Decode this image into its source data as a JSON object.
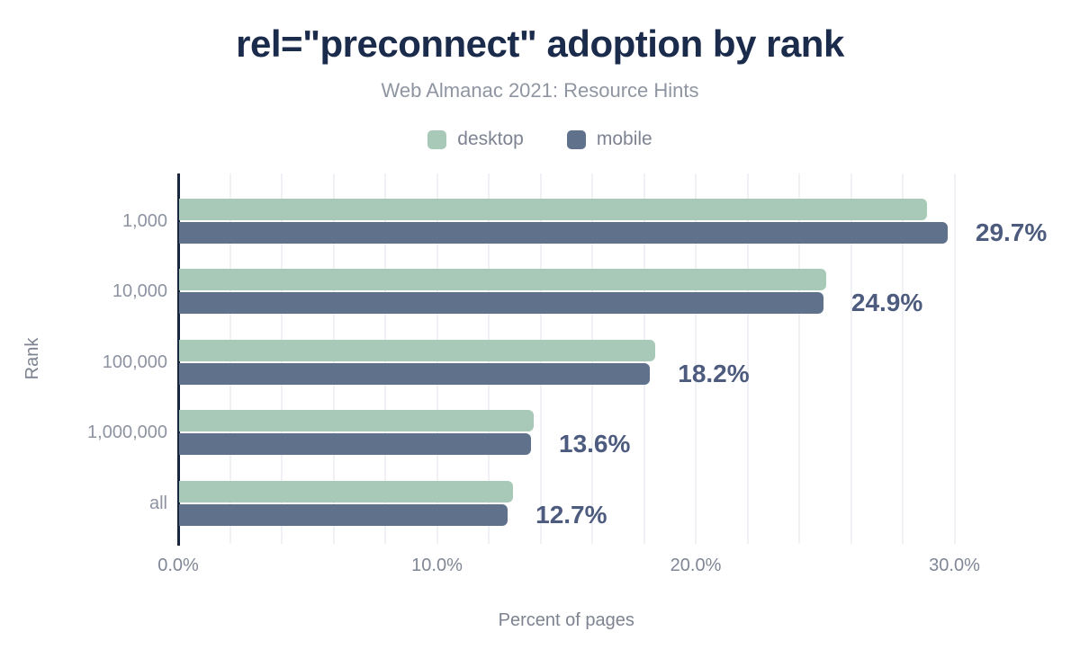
{
  "title": "rel=\"preconnect\" adoption by rank",
  "subtitle": "Web Almanac 2021: Resource Hints",
  "legend": [
    {
      "label": "desktop",
      "color": "#a8c9b7"
    },
    {
      "label": "mobile",
      "color": "#60718c"
    }
  ],
  "colors": {
    "title": "#1b2b4b",
    "subtitle": "#8f95a1",
    "desktop_bar": "#a8c9b7",
    "mobile_bar": "#60718c",
    "value_label": "#4d5c7e",
    "axis_line": "#18273d",
    "gridline": "#f0f1f5",
    "tick_text": "#7f8695"
  },
  "chart_data": {
    "type": "bar",
    "orientation": "horizontal",
    "title": "rel=\"preconnect\" adoption by rank",
    "subtitle": "Web Almanac 2021: Resource Hints",
    "categories": [
      "1,000",
      "10,000",
      "100,000",
      "1,000,000",
      "all"
    ],
    "series": [
      {
        "name": "desktop",
        "color": "#a8c9b7",
        "values": [
          28.9,
          25.0,
          18.4,
          13.7,
          12.9
        ]
      },
      {
        "name": "mobile",
        "color": "#60718c",
        "values": [
          29.7,
          24.9,
          18.2,
          13.6,
          12.7
        ]
      }
    ],
    "data_labels": [
      "29.7%",
      "24.9%",
      "18.2%",
      "13.6%",
      "12.7%"
    ],
    "data_labels_series": "mobile",
    "xlabel": "Percent of pages",
    "ylabel": "Rank",
    "xlim": [
      0,
      30
    ],
    "x_ticks": [
      {
        "value": 0,
        "label": "0.0%"
      },
      {
        "value": 10,
        "label": "10.0%"
      },
      {
        "value": 20,
        "label": "20.0%"
      },
      {
        "value": 30,
        "label": "30.0%"
      }
    ],
    "gridline_step_pct": 2,
    "grid": "vertical",
    "legend_position": "top"
  }
}
